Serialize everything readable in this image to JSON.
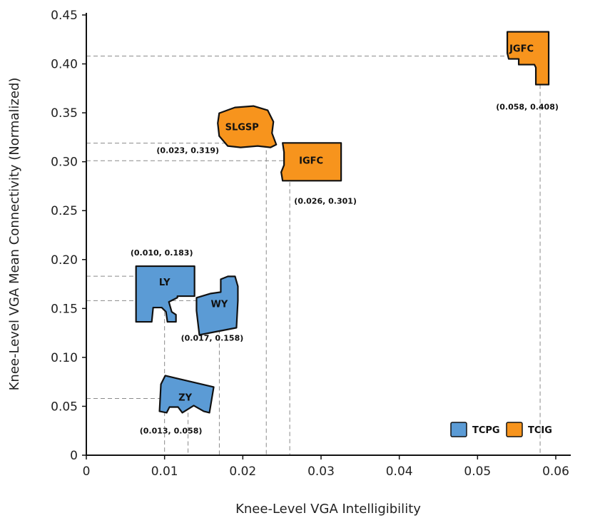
{
  "chart_data": {
    "type": "scatter",
    "title": "",
    "xlabel": "Knee-Level VGA Intelligibility",
    "ylabel": "Knee-Level VGA Mean Connectivity (Normalized)",
    "xlim": [
      0,
      0.06
    ],
    "ylim": [
      0,
      0.45
    ],
    "x_ticks": [
      {
        "value": 0,
        "label": "0"
      },
      {
        "value": 0.01,
        "label": "0.01"
      },
      {
        "value": 0.02,
        "label": "0.02"
      },
      {
        "value": 0.03,
        "label": "0.03"
      },
      {
        "value": 0.04,
        "label": "0.04"
      },
      {
        "value": 0.05,
        "label": "0.05"
      },
      {
        "value": 0.06,
        "label": "0.06"
      }
    ],
    "y_ticks": [
      {
        "value": 0,
        "label": "0"
      },
      {
        "value": 0.05,
        "label": "0.05"
      },
      {
        "value": 0.1,
        "label": "0.10"
      },
      {
        "value": 0.15,
        "label": "0.15"
      },
      {
        "value": 0.2,
        "label": "0.20"
      },
      {
        "value": 0.25,
        "label": "0.25"
      },
      {
        "value": 0.3,
        "label": "0.30"
      },
      {
        "value": 0.35,
        "label": "0.35"
      },
      {
        "value": 0.4,
        "label": "0.40"
      },
      {
        "value": 0.45,
        "label": "0.45"
      }
    ],
    "grid": false,
    "legend_position": "bottom-right",
    "series": [
      {
        "name": "TCPG",
        "color": "#5b9bd5"
      },
      {
        "name": "TCIG",
        "color": "#f7941d"
      }
    ],
    "points": [
      {
        "name": "JGFC",
        "series": "TCIG",
        "x": 0.058,
        "y": 0.408,
        "label": "(0.058, 0.408)"
      },
      {
        "name": "SLGSP",
        "series": "TCIG",
        "x": 0.023,
        "y": 0.319,
        "label": "(0.023, 0.319)"
      },
      {
        "name": "IGFC",
        "series": "TCIG",
        "x": 0.026,
        "y": 0.301,
        "label": "(0.026, 0.301)"
      },
      {
        "name": "LY",
        "series": "TCPG",
        "x": 0.01,
        "y": 0.183,
        "label": "(0.010, 0.183)"
      },
      {
        "name": "WY",
        "series": "TCPG",
        "x": 0.017,
        "y": 0.158,
        "label": "(0.017, 0.158)"
      },
      {
        "name": "ZY",
        "series": "TCPG",
        "x": 0.013,
        "y": 0.058,
        "label": "(0.013, 0.058)"
      }
    ]
  }
}
